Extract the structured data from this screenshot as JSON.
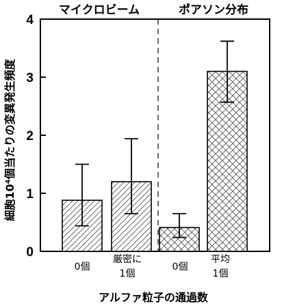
{
  "chart_data": {
    "type": "bar",
    "headers": [
      "マイクロビーム",
      "ポアソン分布"
    ],
    "categories": [
      {
        "group": "マイクロビーム",
        "line1": "0個",
        "line2": ""
      },
      {
        "group": "マイクロビーム",
        "line1": "厳密に",
        "line2": "1個"
      },
      {
        "group": "ポアソン分布",
        "line1": "0個",
        "line2": ""
      },
      {
        "group": "ポアソン分布",
        "line1": "平均",
        "line2": "1個"
      }
    ],
    "values": [
      0.88,
      1.2,
      0.41,
      3.1
    ],
    "error_low": [
      0.44,
      0.65,
      0.24,
      2.57
    ],
    "error_high": [
      1.5,
      1.94,
      0.65,
      3.62
    ],
    "patterns": [
      "diagonal",
      "diagonal",
      "crosshatch",
      "crosshatch"
    ],
    "ylim": [
      0,
      4
    ],
    "yticks": [
      "0",
      "1",
      "2",
      "3",
      "4"
    ],
    "ylabel": "細胞10⁴個当たりの変異発生頻度",
    "xlabel": "アルファ粒子の通過数",
    "grid": false,
    "divider": "dashed vertical line between groups"
  }
}
